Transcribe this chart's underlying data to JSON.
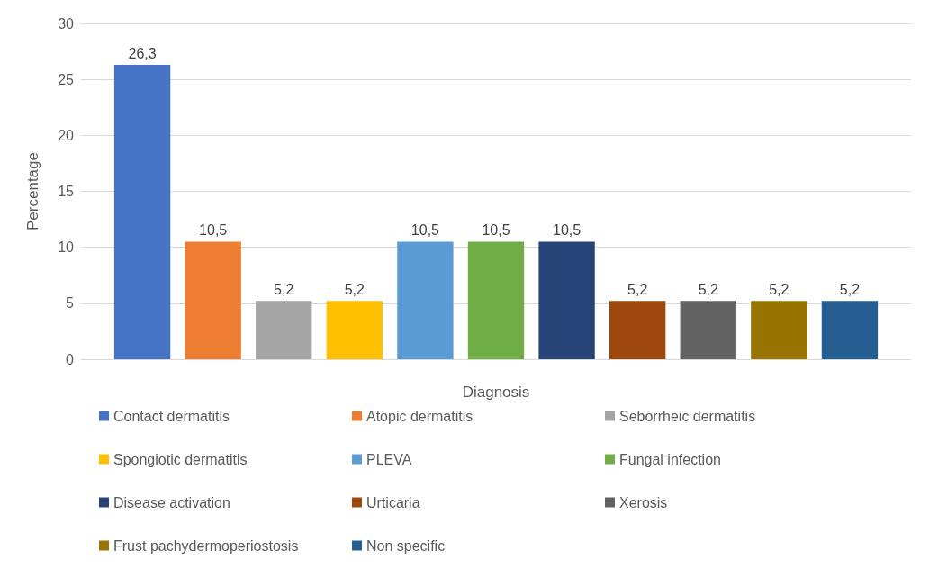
{
  "chart_data": {
    "type": "bar",
    "xlabel": "Diagnosis",
    "ylabel": "Percentage",
    "categories": [
      null
    ],
    "series": [
      {
        "name": "Contact dermatitis",
        "color": "#4472c4",
        "values": [
          26.3
        ],
        "value_labels": [
          "26,3"
        ]
      },
      {
        "name": "Atopic dermatitis",
        "color": "#ed7d31",
        "values": [
          10.5
        ],
        "value_labels": [
          "10,5"
        ]
      },
      {
        "name": "Seborrheic dermatitis",
        "color": "#a5a5a5",
        "values": [
          5.2
        ],
        "value_labels": [
          "5,2"
        ]
      },
      {
        "name": "Spongiotic dermatitis",
        "color": "#ffc000",
        "values": [
          5.2
        ],
        "value_labels": [
          "5,2"
        ]
      },
      {
        "name": "PLEVA",
        "color": "#5b9bd5",
        "values": [
          10.5
        ],
        "value_labels": [
          "10,5"
        ]
      },
      {
        "name": "Fungal infection",
        "color": "#70ad47",
        "values": [
          10.5
        ],
        "value_labels": [
          "10,5"
        ]
      },
      {
        "name": "Disease activation",
        "color": "#264478",
        "values": [
          10.5
        ],
        "value_labels": [
          "10,5"
        ]
      },
      {
        "name": "Urticaria",
        "color": "#9e480e",
        "values": [
          5.2
        ],
        "value_labels": [
          "5,2"
        ]
      },
      {
        "name": "Xerosis",
        "color": "#636363",
        "values": [
          5.2
        ],
        "value_labels": [
          "5,2"
        ]
      },
      {
        "name": "Frust pachydermoperiostosis",
        "color": "#997300",
        "values": [
          5.2
        ],
        "value_labels": [
          "5,2"
        ]
      },
      {
        "name": "Non specific",
        "color": "#255e91",
        "values": [
          5.2
        ],
        "value_labels": [
          "5,2"
        ]
      }
    ],
    "ylim": [
      0,
      30
    ],
    "yticks": [
      0,
      5,
      10,
      15,
      20,
      25,
      30
    ],
    "grid": "y",
    "legend": "bottom"
  }
}
